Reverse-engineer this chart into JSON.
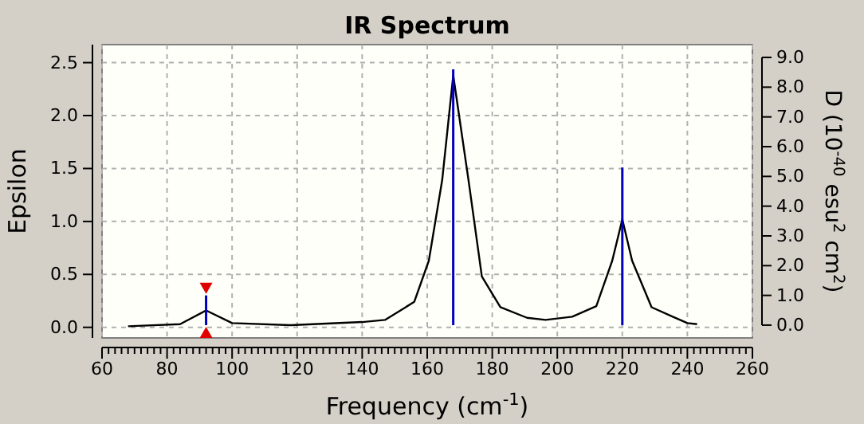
{
  "chart_data": {
    "type": "line",
    "title": "IR Spectrum",
    "xlabel": "Frequency (cm$^{-1}$)",
    "ylabel": "Epsilon",
    "y2label": "D (10$^{-40}$ esu$^{2}$ cm$^{2}$)",
    "xlim": [
      60,
      260
    ],
    "ylim": [
      -0.1,
      2.67
    ],
    "y2lim": [
      -0.43,
      9.43
    ],
    "xticks": [
      60,
      {
        "value": 62,
        "label": null
      },
      {
        "value": 64,
        "label": null
      },
      {
        "value": 66,
        "label": null
      },
      {
        "value": 68,
        "label": null
      },
      {
        "value": 70,
        "label": null
      },
      {
        "value": 72,
        "label": null
      },
      {
        "value": 74,
        "label": null
      },
      {
        "value": 76,
        "label": null
      },
      {
        "value": 78,
        "label": null
      },
      80,
      {
        "value": 82,
        "label": null
      },
      {
        "value": 84,
        "label": null
      },
      {
        "value": 86,
        "label": null
      },
      {
        "value": 88,
        "label": null
      },
      {
        "value": 90,
        "label": null
      },
      {
        "value": 92,
        "label": null
      },
      {
        "value": 94,
        "label": null
      },
      {
        "value": 96,
        "label": null
      },
      {
        "value": 98,
        "label": null
      },
      100,
      {
        "value": 102,
        "label": null
      },
      {
        "value": 104,
        "label": null
      },
      {
        "value": 106,
        "label": null
      },
      {
        "value": 108,
        "label": null
      },
      {
        "value": 110,
        "label": null
      },
      {
        "value": 112,
        "label": null
      },
      {
        "value": 114,
        "label": null
      },
      {
        "value": 116,
        "label": null
      },
      {
        "value": 118,
        "label": null
      },
      120,
      {
        "value": 122,
        "label": null
      },
      {
        "value": 124,
        "label": null
      },
      {
        "value": 126,
        "label": null
      },
      {
        "value": 128,
        "label": null
      },
      {
        "value": 130,
        "label": null
      },
      {
        "value": 132,
        "label": null
      },
      {
        "value": 134,
        "label": null
      },
      {
        "value": 136,
        "label": null
      },
      {
        "value": 138,
        "label": null
      },
      140,
      {
        "value": 142,
        "label": null
      },
      {
        "value": 144,
        "label": null
      },
      {
        "value": 146,
        "label": null
      },
      {
        "value": 148,
        "label": null
      },
      {
        "value": 150,
        "label": null
      },
      {
        "value": 152,
        "label": null
      },
      {
        "value": 154,
        "label": null
      },
      {
        "value": 156,
        "label": null
      },
      {
        "value": 158,
        "label": null
      },
      160,
      {
        "value": 162,
        "label": null
      },
      {
        "value": 164,
        "label": null
      },
      {
        "value": 166,
        "label": null
      },
      {
        "value": 168,
        "label": null
      },
      {
        "value": 170,
        "label": null
      },
      {
        "value": 172,
        "label": null
      },
      {
        "value": 174,
        "label": null
      },
      {
        "value": 176,
        "label": null
      },
      {
        "value": 178,
        "label": null
      },
      180,
      {
        "value": 182,
        "label": null
      },
      {
        "value": 184,
        "label": null
      },
      {
        "value": 186,
        "label": null
      },
      {
        "value": 188,
        "label": null
      },
      {
        "value": 190,
        "label": null
      },
      {
        "value": 192,
        "label": null
      },
      {
        "value": 194,
        "label": null
      },
      {
        "value": 196,
        "label": null
      },
      {
        "value": 198,
        "label": null
      },
      200,
      {
        "value": 202,
        "label": null
      },
      {
        "value": 204,
        "label": null
      },
      {
        "value": 206,
        "label": null
      },
      {
        "value": 208,
        "label": null
      },
      {
        "value": 210,
        "label": null
      },
      {
        "value": 212,
        "label": null
      },
      {
        "value": 214,
        "label": null
      },
      {
        "value": 216,
        "label": null
      },
      {
        "value": 218,
        "label": null
      },
      220,
      {
        "value": 222,
        "label": null
      },
      {
        "value": 224,
        "label": null
      },
      {
        "value": 226,
        "label": null
      },
      {
        "value": 228,
        "label": null
      },
      {
        "value": 230,
        "label": null
      },
      {
        "value": 232,
        "label": null
      },
      {
        "value": 234,
        "label": null
      },
      {
        "value": 236,
        "label": null
      },
      {
        "value": 238,
        "label": null
      },
      240,
      {
        "value": 242,
        "label": null
      },
      {
        "value": 244,
        "label": null
      },
      {
        "value": 246,
        "label": null
      },
      {
        "value": 248,
        "label": null
      },
      {
        "value": 250,
        "label": null
      },
      {
        "value": 252,
        "label": null
      },
      {
        "value": 254,
        "label": null
      },
      {
        "value": 256,
        "label": null
      },
      {
        "value": 258,
        "label": null
      },
      260
    ],
    "yticks": [
      {
        "value": 0,
        "label": "0.0"
      },
      {
        "value": 0.5,
        "label": "0.5"
      },
      {
        "value": 1,
        "label": "1.0"
      },
      {
        "value": 1.5,
        "label": "1.5"
      },
      {
        "value": 2,
        "label": "2.0"
      },
      {
        "value": 2.5,
        "label": "2.5"
      }
    ],
    "y2ticks": [
      {
        "value": 0,
        "label": "0.0"
      },
      {
        "value": 1,
        "label": "1.0"
      },
      {
        "value": 2,
        "label": "2.0"
      },
      {
        "value": 3,
        "label": "3.0"
      },
      {
        "value": 4,
        "label": "4.0"
      },
      {
        "value": 5,
        "label": "5.0"
      },
      {
        "value": 6,
        "label": "6.0"
      },
      {
        "value": 7,
        "label": "7.0"
      },
      {
        "value": 8,
        "label": "8.0"
      },
      {
        "value": 9,
        "label": "9.0"
      }
    ],
    "grid": true,
    "series": [
      {
        "color": "#000000",
        "x": [
          68,
          84,
          92,
          100,
          118,
          140,
          147,
          156,
          160.5,
          164.6,
          168,
          172.7,
          176.8,
          182.5,
          190.7,
          196.4,
          204.6,
          212,
          216.9,
          220,
          223,
          229,
          235.5,
          240,
          243
        ],
        "values": [
          0.01,
          0.03,
          0.16,
          0.04,
          0.02,
          0.05,
          0.07,
          0.24,
          0.63,
          1.39,
          2.38,
          1.39,
          0.48,
          0.19,
          0.09,
          0.07,
          0.1,
          0.2,
          0.63,
          1.02,
          0.63,
          0.19,
          0.1,
          0.04,
          0.03
        ]
      },
      {
        "type": "bar",
        "axis": "y2",
        "color": "#0000c0",
        "x": [
          92,
          168,
          220
        ],
        "values": [
          1.0,
          8.6,
          5.3
        ]
      }
    ]
  }
}
